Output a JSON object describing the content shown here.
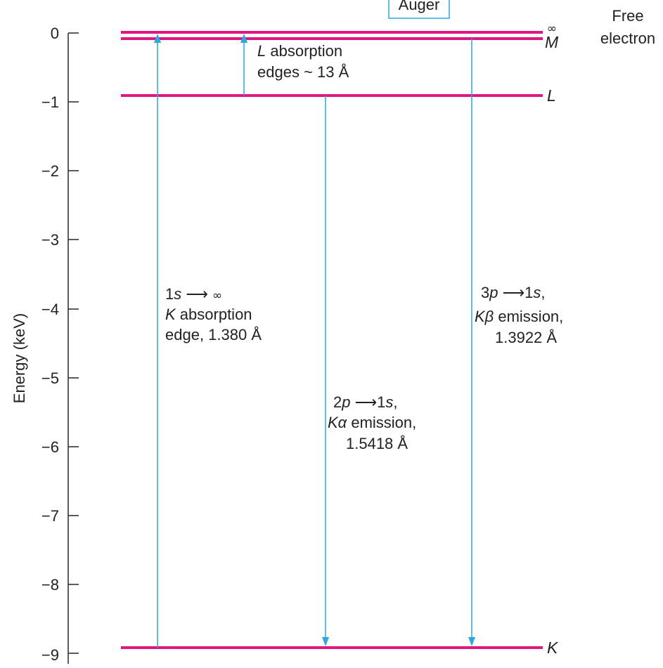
{
  "axis": {
    "title": "Energy (keV)",
    "ticks": [
      "0",
      "−1",
      "−2",
      "−3",
      "−4",
      "−5",
      "−6",
      "−7",
      "−8",
      "−9"
    ]
  },
  "levels": {
    "infinity_symbol": "∞",
    "M": "M",
    "L": "L",
    "K": "K",
    "free_electron_line1": "Free",
    "free_electron_line2": "electron"
  },
  "top_box_label": "Auger",
  "annotations": {
    "l_absorption": {
      "line1_italic": "L",
      "line1_rest": " absorption",
      "line2": "edges ~ 13 Å"
    },
    "k_absorption": {
      "line1_italic": "s",
      "line1_prefix": "1",
      "line1_arrow": " ⟶ ",
      "line1_end": "∞",
      "line2_italic": "K",
      "line2_rest": " absorption",
      "line3": "edge, 1.380 Å"
    },
    "k_alpha": {
      "line1_prefix": "2",
      "line1_italic_a": "p",
      "line1_arrow": " ⟶",
      "line1_mid": "1",
      "line1_italic_b": "s",
      "line1_end": ",",
      "line2_italic": "Kα",
      "line2_rest": " emission,",
      "line3": "1.5418 Å"
    },
    "k_beta": {
      "line1_prefix": "3",
      "line1_italic_a": "p",
      "line1_arrow": " ⟶",
      "line1_mid": "1",
      "line1_italic_b": "s",
      "line1_end": ",",
      "line2_italic": "Kβ",
      "line2_rest": " emission,",
      "line3": "1.3922 Å"
    }
  },
  "colors": {
    "level_line": "#e0177f",
    "arrow": "#29a9e1",
    "axis": "#333333",
    "text": "#222222"
  }
}
